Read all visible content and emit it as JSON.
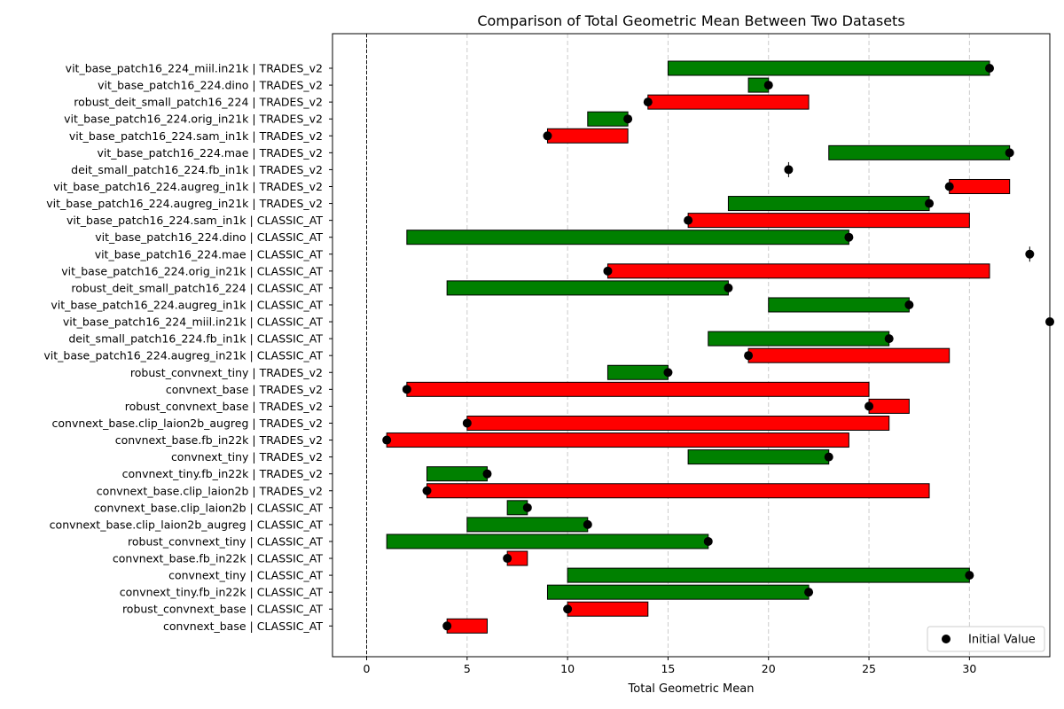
{
  "chart_data": {
    "type": "bar",
    "subtype": "floating-horizontal-bar",
    "title": "Comparison of Total Geometric Mean Between Two Datasets",
    "xlabel": "Total Geometric Mean",
    "ylabel": "",
    "xlim": [
      -1.7,
      34
    ],
    "xticks": [
      0,
      5,
      10,
      15,
      20,
      25,
      30
    ],
    "grid": {
      "x": true,
      "y": false,
      "style": "dashed"
    },
    "reference_line": {
      "x": 0,
      "style": "dashed",
      "color": "#000000"
    },
    "colors": {
      "increase": "#008000",
      "decrease": "#ff0000",
      "marker": "#000000"
    },
    "legend": {
      "position": "lower-right",
      "entries": [
        {
          "label": "Initial Value",
          "marker": "circle"
        }
      ]
    },
    "rows": [
      {
        "label": "vit_base_patch16_224_miil.in21k | TRADES_v2",
        "start": 15,
        "end": 31,
        "initial": 31,
        "color": "green"
      },
      {
        "label": "vit_base_patch16_224.dino | TRADES_v2",
        "start": 19,
        "end": 20,
        "initial": 20,
        "color": "green"
      },
      {
        "label": "robust_deit_small_patch16_224 | TRADES_v2",
        "start": 14,
        "end": 22,
        "initial": 14,
        "color": "red"
      },
      {
        "label": "vit_base_patch16_224.orig_in21k | TRADES_v2",
        "start": 11,
        "end": 13,
        "initial": 13,
        "color": "green"
      },
      {
        "label": "vit_base_patch16_224.sam_in1k | TRADES_v2",
        "start": 9,
        "end": 13,
        "initial": 9,
        "color": "red"
      },
      {
        "label": "vit_base_patch16_224.mae | TRADES_v2",
        "start": 23,
        "end": 32,
        "initial": 32,
        "color": "green"
      },
      {
        "label": "deit_small_patch16_224.fb_in1k | TRADES_v2",
        "start": 21,
        "end": 21,
        "initial": 21,
        "color": "green"
      },
      {
        "label": "vit_base_patch16_224.augreg_in1k | TRADES_v2",
        "start": 29,
        "end": 32,
        "initial": 29,
        "color": "red"
      },
      {
        "label": "vit_base_patch16_224.augreg_in21k | TRADES_v2",
        "start": 18,
        "end": 28,
        "initial": 28,
        "color": "green"
      },
      {
        "label": "vit_base_patch16_224.sam_in1k | CLASSIC_AT",
        "start": 16,
        "end": 30,
        "initial": 16,
        "color": "red"
      },
      {
        "label": "vit_base_patch16_224.dino | CLASSIC_AT",
        "start": 2,
        "end": 24,
        "initial": 24,
        "color": "green"
      },
      {
        "label": "vit_base_patch16_224.mae | CLASSIC_AT",
        "start": 33,
        "end": 33,
        "initial": 33,
        "color": "green"
      },
      {
        "label": "vit_base_patch16_224.orig_in21k | CLASSIC_AT",
        "start": 12,
        "end": 31,
        "initial": 12,
        "color": "red"
      },
      {
        "label": "robust_deit_small_patch16_224 | CLASSIC_AT",
        "start": 4,
        "end": 18,
        "initial": 18,
        "color": "green"
      },
      {
        "label": "vit_base_patch16_224.augreg_in1k | CLASSIC_AT",
        "start": 20,
        "end": 27,
        "initial": 27,
        "color": "green"
      },
      {
        "label": "vit_base_patch16_224_miil.in21k | CLASSIC_AT",
        "start": 34,
        "end": 34,
        "initial": 34,
        "color": "green"
      },
      {
        "label": "deit_small_patch16_224.fb_in1k | CLASSIC_AT",
        "start": 17,
        "end": 26,
        "initial": 26,
        "color": "green"
      },
      {
        "label": "vit_base_patch16_224.augreg_in21k | CLASSIC_AT",
        "start": 19,
        "end": 29,
        "initial": 19,
        "color": "red"
      },
      {
        "label": "robust_convnext_tiny | TRADES_v2",
        "start": 12,
        "end": 15,
        "initial": 15,
        "color": "green"
      },
      {
        "label": "convnext_base | TRADES_v2",
        "start": 2,
        "end": 25,
        "initial": 2,
        "color": "red"
      },
      {
        "label": "robust_convnext_base | TRADES_v2",
        "start": 25,
        "end": 27,
        "initial": 25,
        "color": "red"
      },
      {
        "label": "convnext_base.clip_laion2b_augreg | TRADES_v2",
        "start": 5,
        "end": 26,
        "initial": 5,
        "color": "red"
      },
      {
        "label": "convnext_base.fb_in22k | TRADES_v2",
        "start": 1,
        "end": 24,
        "initial": 1,
        "color": "red"
      },
      {
        "label": "convnext_tiny | TRADES_v2",
        "start": 16,
        "end": 23,
        "initial": 23,
        "color": "green"
      },
      {
        "label": "convnext_tiny.fb_in22k | TRADES_v2",
        "start": 3,
        "end": 6,
        "initial": 6,
        "color": "green"
      },
      {
        "label": "convnext_base.clip_laion2b | TRADES_v2",
        "start": 3,
        "end": 28,
        "initial": 3,
        "color": "red"
      },
      {
        "label": "convnext_base.clip_laion2b | CLASSIC_AT",
        "start": 7,
        "end": 8,
        "initial": 8,
        "color": "green"
      },
      {
        "label": "convnext_base.clip_laion2b_augreg | CLASSIC_AT",
        "start": 5,
        "end": 11,
        "initial": 11,
        "color": "green"
      },
      {
        "label": "robust_convnext_tiny | CLASSIC_AT",
        "start": 1,
        "end": 17,
        "initial": 17,
        "color": "green"
      },
      {
        "label": "convnext_base.fb_in22k | CLASSIC_AT",
        "start": 7,
        "end": 8,
        "initial": 7,
        "color": "red"
      },
      {
        "label": "convnext_tiny | CLASSIC_AT",
        "start": 10,
        "end": 30,
        "initial": 30,
        "color": "green"
      },
      {
        "label": "convnext_tiny.fb_in22k | CLASSIC_AT",
        "start": 9,
        "end": 22,
        "initial": 22,
        "color": "green"
      },
      {
        "label": "robust_convnext_base | CLASSIC_AT",
        "start": 10,
        "end": 14,
        "initial": 10,
        "color": "red"
      },
      {
        "label": "convnext_base | CLASSIC_AT",
        "start": 4,
        "end": 6,
        "initial": 4,
        "color": "red"
      }
    ]
  }
}
